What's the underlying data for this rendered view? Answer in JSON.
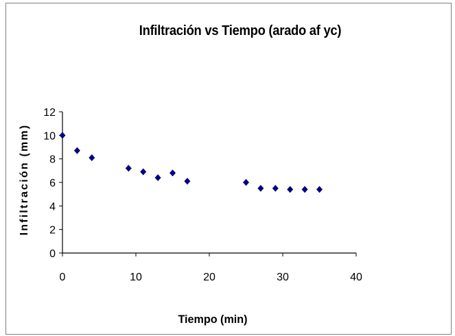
{
  "chart_data": {
    "type": "scatter",
    "title": "Infiltración vs Tiempo (arado af yc)",
    "xlabel": "Tiempo (min)",
    "ylabel": "Infiltración (mm)",
    "xlim": [
      0,
      40
    ],
    "ylim": [
      0,
      12
    ],
    "xticks": [
      "0",
      "10",
      "20",
      "30",
      "40"
    ],
    "yticks": [
      "0",
      "2",
      "4",
      "6",
      "8",
      "10",
      "12"
    ],
    "grid": false,
    "legend": "none",
    "marker": "diamond",
    "marker_color": "#000080",
    "series": [
      {
        "x": [
          0,
          2,
          4,
          9,
          11,
          13,
          15,
          17,
          25,
          27,
          29,
          31,
          33,
          35
        ],
        "y": [
          10.0,
          8.7,
          8.1,
          7.2,
          6.9,
          6.4,
          6.8,
          6.1,
          6.0,
          5.5,
          5.5,
          5.4,
          5.4,
          5.4
        ]
      }
    ]
  }
}
